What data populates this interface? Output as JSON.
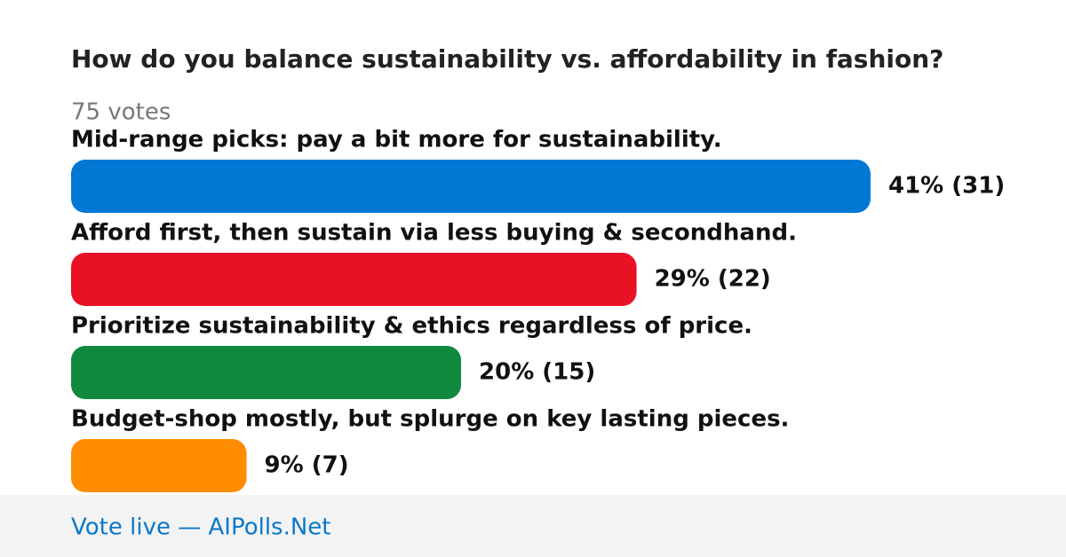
{
  "chart_data": {
    "type": "bar",
    "orientation": "horizontal",
    "title": "How do you balance sustainability vs. affordability in fashion?",
    "subtitle": "75 votes",
    "categories": [
      "Mid-range picks: pay a bit more for sustainability.",
      "Afford first, then sustain via less buying & secondhand.",
      "Prioritize sustainability & ethics regardless of price.",
      "Budget-shop mostly, but splurge on key lasting pieces."
    ],
    "values": [
      41,
      29,
      20,
      9
    ],
    "value_labels": [
      "41% (31)",
      "29% (22)",
      "20% (15)",
      "9% (7)"
    ],
    "colors": [
      "#0078d4",
      "#e81224",
      "#10893e",
      "#ff8c00"
    ]
  },
  "footer": "Vote live — AIPolls.Net"
}
